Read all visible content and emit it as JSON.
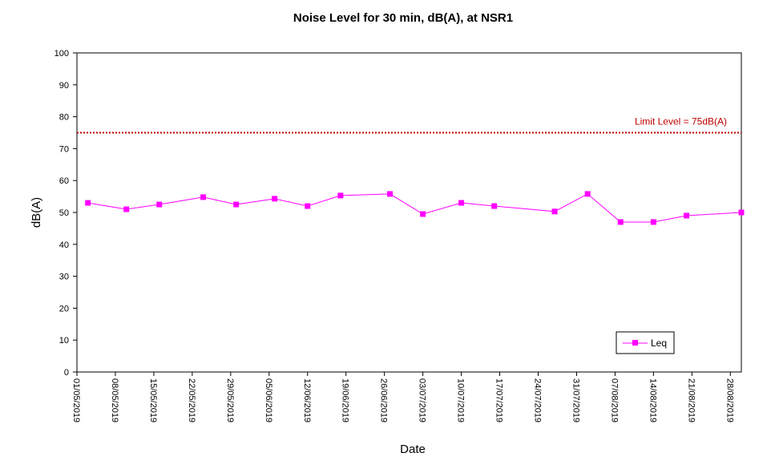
{
  "chart_data": {
    "type": "line",
    "title": "Noise Level for 30 min, dB(A), at NSR1",
    "xlabel": "Date",
    "ylabel": "dB(A)",
    "ylim": [
      0,
      100
    ],
    "yticks": [
      0,
      10,
      20,
      30,
      40,
      50,
      60,
      70,
      80,
      90,
      100
    ],
    "xlim": [
      "01/05/2019",
      "30/08/2019"
    ],
    "xticks": [
      "01/05/2019",
      "08/05/2019",
      "15/05/2019",
      "22/05/2019",
      "29/05/2019",
      "05/06/2019",
      "12/06/2019",
      "19/06/2019",
      "26/06/2019",
      "03/07/2019",
      "10/07/2019",
      "17/07/2019",
      "24/07/2019",
      "31/07/2019",
      "07/08/2019",
      "14/08/2019",
      "21/08/2019",
      "28/08/2019"
    ],
    "grid": false,
    "legend_position": "bottom-right",
    "series": [
      {
        "name": "Leq",
        "color": "#ff00ff",
        "marker": "square",
        "points": [
          {
            "x": "03/05/2019",
            "y": 53.0
          },
          {
            "x": "10/05/2019",
            "y": 51.0
          },
          {
            "x": "16/05/2019",
            "y": 52.5
          },
          {
            "x": "24/05/2019",
            "y": 54.8
          },
          {
            "x": "30/05/2019",
            "y": 52.5
          },
          {
            "x": "06/06/2019",
            "y": 54.3
          },
          {
            "x": "12/06/2019",
            "y": 52.0
          },
          {
            "x": "18/06/2019",
            "y": 55.3
          },
          {
            "x": "27/06/2019",
            "y": 55.8
          },
          {
            "x": "03/07/2019",
            "y": 49.5
          },
          {
            "x": "10/07/2019",
            "y": 53.0
          },
          {
            "x": "16/07/2019",
            "y": 52.0
          },
          {
            "x": "27/07/2019",
            "y": 50.3
          },
          {
            "x": "02/08/2019",
            "y": 55.8
          },
          {
            "x": "08/08/2019",
            "y": 47.0
          },
          {
            "x": "14/08/2019",
            "y": 47.0
          },
          {
            "x": "20/08/2019",
            "y": 49.0
          },
          {
            "x": "30/08/2019",
            "y": 50.0
          }
        ]
      }
    ],
    "limit_line": {
      "value": 75,
      "label": "Limit Level  = 75dB(A)",
      "color": "#c00000",
      "style": "dotted"
    }
  }
}
